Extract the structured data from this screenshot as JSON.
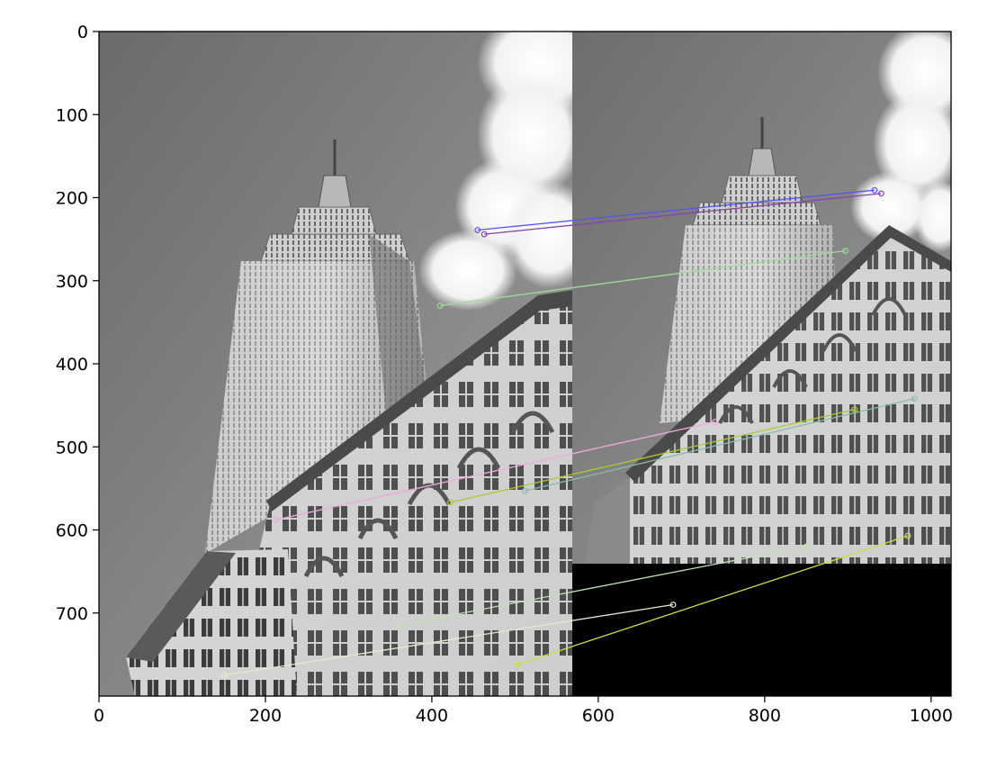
{
  "chart_data": {
    "type": "image",
    "x_ticks": [
      0,
      200,
      400,
      600,
      800,
      1000
    ],
    "y_ticks": [
      0,
      100,
      200,
      300,
      400,
      500,
      600,
      700
    ],
    "xlim": [
      0,
      1024
    ],
    "ylim": [
      800,
      0
    ],
    "y_inverted": true,
    "grid": false,
    "image_regions": [
      {
        "name": "left-photo",
        "x": [
          0,
          570
        ],
        "y": [
          0,
          800
        ],
        "content": "grayscale photo of skyscraper"
      },
      {
        "name": "right-photo",
        "x": [
          570,
          1024
        ],
        "y": [
          0,
          640
        ],
        "content": "rotated/scaled grayscale photo of skyscraper"
      },
      {
        "name": "padding",
        "x": [
          570,
          1024
        ],
        "y": [
          640,
          800
        ],
        "color": "#000000"
      }
    ],
    "matches": [
      {
        "x1": 455,
        "y1": 239,
        "x2": 932,
        "y2": 191,
        "color": "#5555ee"
      },
      {
        "x1": 463,
        "y1": 244,
        "x2": 940,
        "y2": 195,
        "color": "#8844aa"
      },
      {
        "x1": 410,
        "y1": 330,
        "x2": 897,
        "y2": 264,
        "color": "#99dd99"
      },
      {
        "x1": 212,
        "y1": 588,
        "x2": 740,
        "y2": 470,
        "color": "#eeaadd"
      },
      {
        "x1": 422,
        "y1": 567,
        "x2": 908,
        "y2": 455,
        "color": "#aacc33"
      },
      {
        "x1": 512,
        "y1": 553,
        "x2": 980,
        "y2": 442,
        "color": "#88bbaa"
      },
      {
        "x1": 503,
        "y1": 762,
        "x2": 972,
        "y2": 607,
        "color": "#ccdd44"
      },
      {
        "x1": 150,
        "y1": 775,
        "x2": 690,
        "y2": 690,
        "color": "#ddeecc"
      },
      {
        "x1": 360,
        "y1": 715,
        "x2": 850,
        "y2": 620,
        "color": "#c8e0b0"
      }
    ]
  }
}
